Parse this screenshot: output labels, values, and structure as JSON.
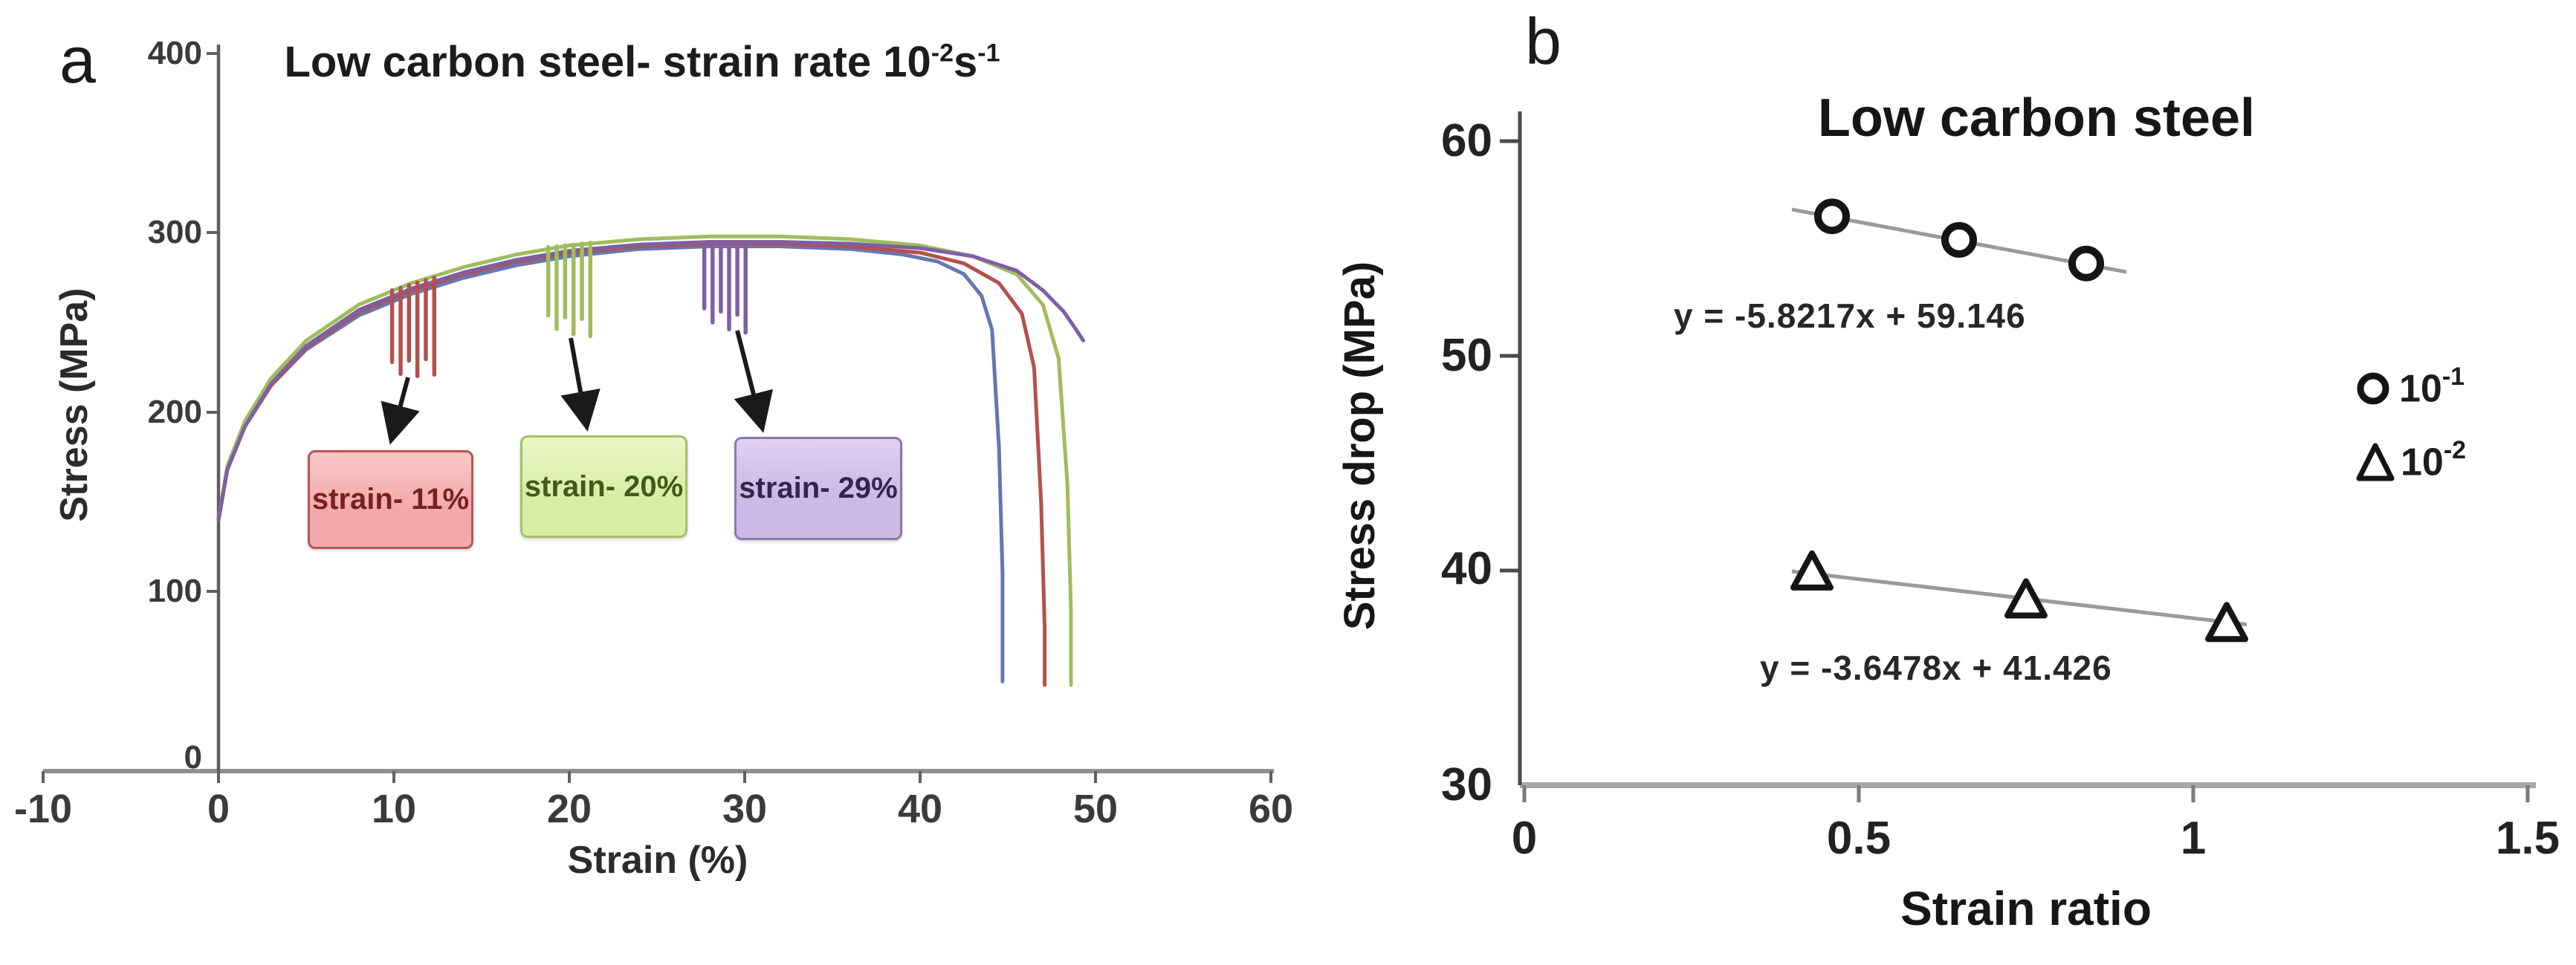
{
  "figure": {
    "panel_a": {
      "label": "a",
      "title_parts": {
        "prefix": "Low carbon steel- strain rate 10",
        "sup1": "-2",
        "mid": "s",
        "sup2": "-1"
      },
      "x_axis": {
        "label": "Strain (%)",
        "ticks": [
          "-10",
          "0",
          "10",
          "20",
          "30",
          "40",
          "50",
          "60"
        ]
      },
      "y_axis": {
        "label": "Stress (MPa)",
        "ticks": [
          "400",
          "300",
          "200",
          "100",
          "0"
        ]
      },
      "annotation_boxes": [
        {
          "text": "strain- 11%",
          "fill_top": "#f9c8c8",
          "fill": "#f3a9a9",
          "border": "#b95553",
          "text_color": "#7a1f1f"
        },
        {
          "text": "strain- 20%",
          "fill_top": "#eaf6c6",
          "fill": "#d9eda4",
          "border": "#a5bf66",
          "text_color": "#3f5a1a"
        },
        {
          "text": "strain- 29%",
          "fill_top": "#ddd0f0",
          "fill": "#cbb9e6",
          "border": "#8e77ab",
          "text_color": "#35244d"
        }
      ]
    },
    "panel_b": {
      "label": "b",
      "title": "Low carbon steel",
      "x_axis": {
        "label": "Strain ratio",
        "ticks": [
          "0",
          "0.5",
          "1",
          "1.5"
        ]
      },
      "y_axis": {
        "label": "Stress drop (MPa)",
        "ticks": [
          "60",
          "50",
          "40",
          "30"
        ]
      },
      "equations": [
        "y = -5.8217x + 59.146",
        "y = -3.6478x + 41.426"
      ],
      "legend": [
        {
          "marker": "circle",
          "base": "10",
          "exp": "-1"
        },
        {
          "marker": "triangle",
          "base": "10",
          "exp": "-2"
        }
      ]
    }
  },
  "chart_data": [
    {
      "type": "line",
      "title": "Low carbon steel- strain rate 10^-2 s^-1",
      "xlabel": "Strain (%)",
      "ylabel": "Stress (MPa)",
      "xlim": [
        -10,
        60
      ],
      "ylim": [
        0,
        400
      ],
      "grid": false,
      "series": [
        {
          "name": "blue",
          "color": "#6577b1",
          "x": [
            0,
            0.5,
            1.5,
            3,
            5,
            8,
            11,
            14,
            17,
            20,
            24,
            28,
            32,
            36,
            39,
            41,
            42.5,
            43.5,
            44.1,
            44.5,
            44.7,
            44.7
          ],
          "y": [
            140,
            168,
            192,
            215,
            235,
            254,
            266,
            275,
            282,
            287,
            291,
            292.5,
            292.5,
            291,
            288,
            284,
            277,
            265,
            246,
            180,
            110,
            50
          ]
        },
        {
          "name": "red",
          "color": "#b5504d",
          "x": [
            0,
            0.5,
            1.5,
            3,
            5,
            8,
            11,
            14,
            17,
            20,
            24,
            28,
            32,
            36,
            40,
            42.5,
            44.5,
            45.8,
            46.5,
            46.9,
            47.1,
            47.1
          ],
          "y": [
            140,
            168,
            192,
            215,
            236,
            256,
            268,
            277,
            284,
            289,
            292.5,
            294,
            294,
            292.5,
            289,
            283,
            272,
            255,
            225,
            150,
            80,
            48
          ]
        },
        {
          "name": "green",
          "color": "#9fbd5d",
          "x": [
            0,
            0.5,
            1.5,
            3,
            5,
            8,
            11,
            14,
            17,
            20,
            24,
            28,
            32,
            36,
            40,
            43,
            45.5,
            47,
            47.9,
            48.4,
            48.6,
            48.6
          ],
          "y": [
            140,
            170,
            195,
            219,
            240,
            260,
            272,
            281,
            288,
            293,
            296.5,
            298,
            298,
            296.5,
            293,
            287,
            277,
            260,
            230,
            160,
            90,
            48
          ]
        },
        {
          "name": "purple",
          "color": "#7d5fa5",
          "x": [
            0,
            0.5,
            1.5,
            3,
            5,
            8,
            11,
            14,
            17,
            20,
            24,
            28,
            32,
            36,
            40,
            43,
            45.5,
            47,
            48.2,
            48.9,
            49.3
          ],
          "y": [
            140,
            168,
            192,
            216,
            237,
            257,
            269,
            278,
            285,
            290,
            293.5,
            295,
            295,
            294,
            291.5,
            287,
            279,
            268,
            256,
            246,
            240
          ]
        }
      ],
      "serrations": [
        {
          "color": "#b5504d",
          "strain_start": 9.9,
          "step": 0.48,
          "count": 6,
          "top_mpa": 268,
          "top_step": 1.4,
          "len_mpa": [
            40,
            48,
            42,
            52,
            44,
            54
          ],
          "label_strain_percent": 11
        },
        {
          "color": "#9fbd5d",
          "strain_start": 18.8,
          "step": 0.48,
          "count": 6,
          "top_mpa": 292,
          "top_step": 0.5,
          "len_mpa": [
            38,
            46,
            40,
            50,
            42,
            52
          ],
          "label_strain_percent": 20
        },
        {
          "color": "#7d5fa5",
          "strain_start": 27.7,
          "step": 0.47,
          "count": 6,
          "top_mpa": 294,
          "top_step": 0.1,
          "len_mpa": [
            36,
            44,
            38,
            48,
            40,
            50
          ],
          "label_strain_percent": 29
        }
      ],
      "annotation_labels": [
        "strain- 11%",
        "strain- 20%",
        "strain- 29%"
      ]
    },
    {
      "type": "scatter",
      "title": "Low carbon steel",
      "xlabel": "Strain ratio",
      "ylabel": "Stress drop (MPa)",
      "xlim": [
        0,
        1.5
      ],
      "ylim": [
        30,
        60
      ],
      "grid": false,
      "legend_position": "right",
      "series": [
        {
          "name": "10^-1",
          "marker": "circle",
          "x": [
            0.46,
            0.65,
            0.84
          ],
          "y": [
            56.5,
            55.4,
            54.3
          ],
          "fit": {
            "label": "y = -5.8217x + 59.146",
            "m": -5.8217,
            "b": 59.146,
            "x_draw": [
              0.4,
              0.9
            ]
          }
        },
        {
          "name": "10^-2",
          "marker": "triangle",
          "x": [
            0.43,
            0.75,
            1.05
          ],
          "y": [
            39.9,
            38.6,
            37.5
          ],
          "fit": {
            "label": "y = -3.6478x + 41.426",
            "m": -3.6478,
            "b": 41.426,
            "x_draw": [
              0.4,
              1.08
            ]
          }
        }
      ]
    }
  ]
}
